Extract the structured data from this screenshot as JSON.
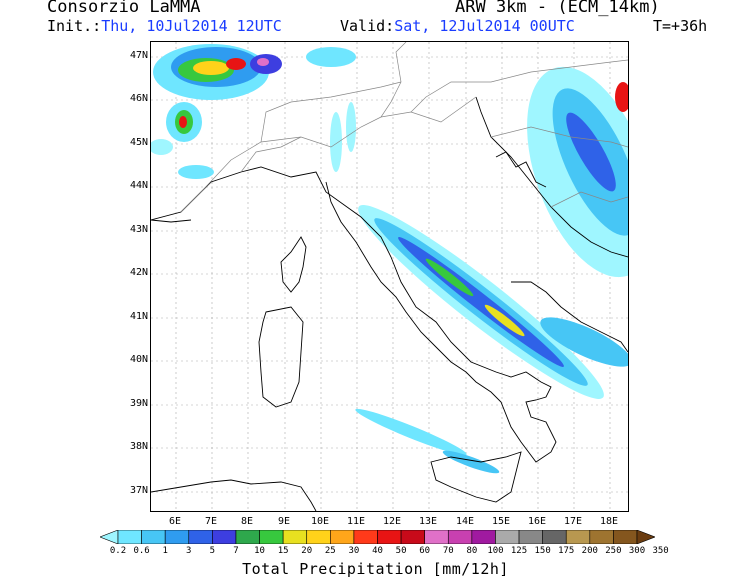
{
  "header": {
    "org": "Consorzio LaMMA",
    "model": "ARW 3km - (ECM_14km)",
    "init_label": "Init.:",
    "init_value": "Thu, 10Jul2014 12UTC",
    "valid_label": "Valid:",
    "valid_value": "Sat, 12Jul2014 00UTC",
    "lead_time": "T=+36h"
  },
  "axes": {
    "lat_labels": [
      "47N",
      "46N",
      "45N",
      "44N",
      "43N",
      "42N",
      "41N",
      "40N",
      "39N",
      "38N",
      "37N"
    ],
    "lon_labels": [
      "6E",
      "7E",
      "8E",
      "9E",
      "10E",
      "11E",
      "12E",
      "13E",
      "14E",
      "15E",
      "16E",
      "17E",
      "18E"
    ]
  },
  "colorbar": {
    "title": "Total Precipitation [mm/12h]",
    "labels": [
      "0.2",
      "0.6",
      "1",
      "3",
      "5",
      "7",
      "10",
      "15",
      "20",
      "25",
      "30",
      "40",
      "50",
      "60",
      "70",
      "80",
      "100",
      "125",
      "150",
      "175",
      "200",
      "250",
      "300",
      "350"
    ],
    "colors": [
      "#9ff6ff",
      "#6fe6ff",
      "#47c6f5",
      "#2f9cf0",
      "#2f62e8",
      "#3d3ee0",
      "#2ea84c",
      "#37c83e",
      "#e8e020",
      "#ffd21a",
      "#ffa61a",
      "#ff3a1a",
      "#e81414",
      "#c80a1a",
      "#e070c8",
      "#c840b0",
      "#a01aa0",
      "#aaaaaa",
      "#888888",
      "#666666",
      "#b89850",
      "#9e7430",
      "#84561e",
      "#6a3c10"
    ]
  }
}
